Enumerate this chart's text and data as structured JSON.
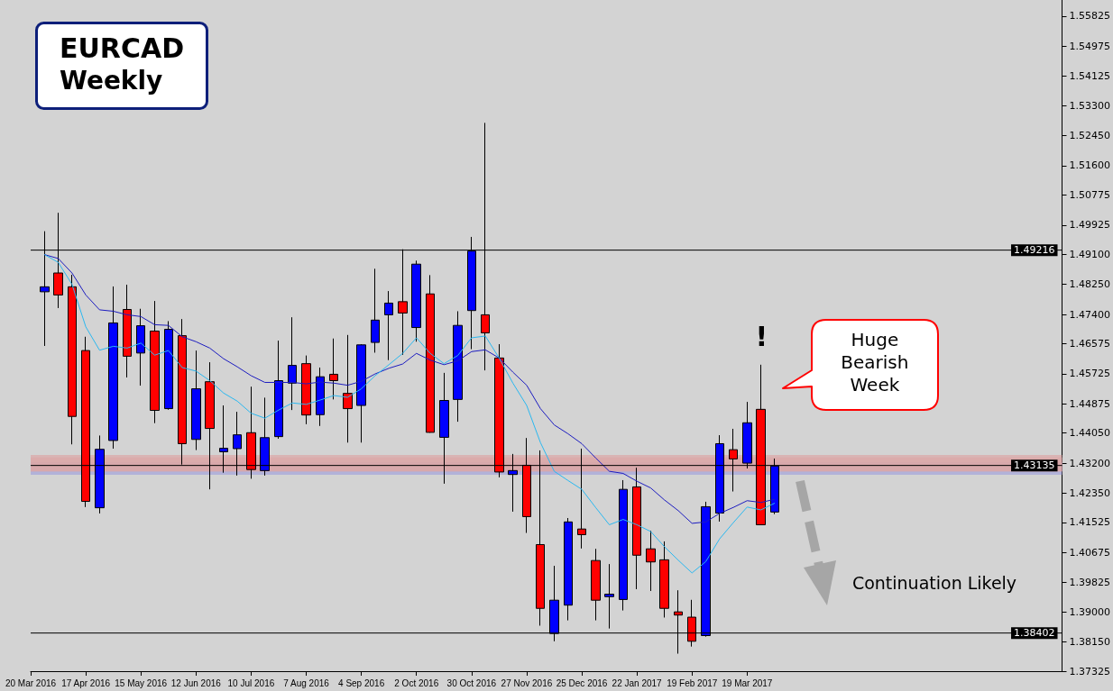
{
  "chart_data": {
    "type": "candlestick",
    "title": "EURCAD",
    "subtitle": "Weekly",
    "x": [
      "2016-03-27",
      "2016-04-03",
      "2016-04-10",
      "2016-04-17",
      "2016-04-24",
      "2016-05-01",
      "2016-05-08",
      "2016-05-15",
      "2016-05-22",
      "2016-05-29",
      "2016-06-05",
      "2016-06-12",
      "2016-06-19",
      "2016-06-26",
      "2016-07-03",
      "2016-07-10",
      "2016-07-17",
      "2016-07-24",
      "2016-07-31",
      "2016-08-07",
      "2016-08-14",
      "2016-08-21",
      "2016-08-28",
      "2016-09-04",
      "2016-09-11",
      "2016-09-18",
      "2016-09-25",
      "2016-10-02",
      "2016-10-09",
      "2016-10-16",
      "2016-10-23",
      "2016-10-30",
      "2016-11-06",
      "2016-11-13",
      "2016-11-20",
      "2016-11-27",
      "2016-12-04",
      "2016-12-11",
      "2016-12-18",
      "2016-12-25",
      "2017-01-01",
      "2017-01-08",
      "2017-01-15",
      "2017-01-22",
      "2017-01-29",
      "2017-02-05",
      "2017-02-12",
      "2017-02-19",
      "2017-02-26",
      "2017-03-05",
      "2017-03-12",
      "2017-03-19",
      "2017-03-26",
      "2017-04-02"
    ],
    "series": [
      {
        "ohlc": [
          [
            1.4804,
            1.4975,
            1.4651,
            1.4818
          ],
          [
            1.4857,
            1.5027,
            1.4758,
            1.4795
          ],
          [
            1.4818,
            1.4852,
            1.4373,
            1.4452
          ],
          [
            1.4638,
            1.4677,
            1.4196,
            1.4212
          ],
          [
            1.4194,
            1.4398,
            1.4178,
            1.4359
          ],
          [
            1.4384,
            1.4819,
            1.4361,
            1.4716
          ],
          [
            1.4754,
            1.4824,
            1.4562,
            1.4622
          ],
          [
            1.4631,
            1.4756,
            1.4539,
            1.4708
          ],
          [
            1.4693,
            1.4778,
            1.4433,
            1.4469
          ],
          [
            1.4474,
            1.4721,
            1.4471,
            1.4698
          ],
          [
            1.468,
            1.4727,
            1.4316,
            1.4375
          ],
          [
            1.4387,
            1.4638,
            1.4357,
            1.453
          ],
          [
            1.455,
            1.4605,
            1.4246,
            1.4418
          ],
          [
            1.4352,
            1.4483,
            1.4293,
            1.4362
          ],
          [
            1.4361,
            1.4465,
            1.4285,
            1.44
          ],
          [
            1.4406,
            1.4536,
            1.4276,
            1.4302
          ],
          [
            1.4299,
            1.4505,
            1.4285,
            1.4392
          ],
          [
            1.4395,
            1.4666,
            1.4389,
            1.4553
          ],
          [
            1.4546,
            1.4732,
            1.447,
            1.4596
          ],
          [
            1.4601,
            1.4624,
            1.443,
            1.4456
          ],
          [
            1.4457,
            1.459,
            1.4425,
            1.4564
          ],
          [
            1.4571,
            1.4672,
            1.45,
            1.4553
          ],
          [
            1.4517,
            1.4682,
            1.4378,
            1.4474
          ],
          [
            1.4483,
            1.4656,
            1.4378,
            1.4654
          ],
          [
            1.4661,
            1.4869,
            1.4632,
            1.4724
          ],
          [
            1.4739,
            1.4806,
            1.4611,
            1.4772
          ],
          [
            1.4776,
            1.4924,
            1.4626,
            1.4744
          ],
          [
            1.4703,
            1.4892,
            1.4663,
            1.4882
          ],
          [
            1.4798,
            1.4851,
            1.4406,
            1.4407
          ],
          [
            1.4393,
            1.4575,
            1.4262,
            1.4497
          ],
          [
            1.45,
            1.4749,
            1.4437,
            1.4709
          ],
          [
            1.4751,
            1.4959,
            1.4642,
            1.4919
          ],
          [
            1.4739,
            1.5281,
            1.4582,
            1.4688
          ],
          [
            1.4617,
            1.4656,
            1.428,
            1.4295
          ],
          [
            1.4288,
            1.4346,
            1.4183,
            1.4299
          ],
          [
            1.4314,
            1.4391,
            1.4123,
            1.4169
          ],
          [
            1.409,
            1.4356,
            1.3861,
            1.391
          ],
          [
            1.3839,
            1.403,
            1.3817,
            1.3933
          ],
          [
            1.3919,
            1.4165,
            1.3876,
            1.4154
          ],
          [
            1.4134,
            1.4361,
            1.4079,
            1.4118
          ],
          [
            1.4045,
            1.4078,
            1.3876,
            1.3933
          ],
          [
            1.3943,
            1.4035,
            1.3853,
            1.395
          ],
          [
            1.3935,
            1.4272,
            1.3904,
            1.4246
          ],
          [
            1.4253,
            1.4307,
            1.3964,
            1.406
          ],
          [
            1.4078,
            1.4129,
            1.3959,
            1.4041
          ],
          [
            1.4047,
            1.4099,
            1.3884,
            1.391
          ],
          [
            1.39,
            1.3961,
            1.3782,
            1.3891
          ],
          [
            1.3885,
            1.3934,
            1.3802,
            1.3817
          ],
          [
            1.3833,
            1.4211,
            1.383,
            1.4197
          ],
          [
            1.4179,
            1.4399,
            1.4155,
            1.4375
          ],
          [
            1.4358,
            1.4417,
            1.424,
            1.4332
          ],
          [
            1.432,
            1.4493,
            1.4305,
            1.4434
          ],
          [
            1.4472,
            1.4598,
            1.4146,
            1.4146
          ],
          [
            1.4182,
            1.4333,
            1.4176,
            1.4312
          ]
        ],
        "colors": [
          "#0000ff",
          "#ff0000",
          "#ff0000",
          "#ff0000",
          "#0000ff",
          "#0000ff",
          "#ff0000",
          "#0000ff",
          "#ff0000",
          "#0000ff",
          "#ff0000",
          "#0000ff",
          "#ff0000",
          "#0000ff",
          "#0000ff",
          "#ff0000",
          "#0000ff",
          "#0000ff",
          "#0000ff",
          "#ff0000",
          "#0000ff",
          "#ff0000",
          "#ff0000",
          "#0000ff",
          "#0000ff",
          "#0000ff",
          "#ff0000",
          "#0000ff",
          "#ff0000",
          "#0000ff",
          "#0000ff",
          "#0000ff",
          "#ff0000",
          "#ff0000",
          "#0000ff",
          "#ff0000",
          "#ff0000",
          "#0000ff",
          "#0000ff",
          "#ff0000",
          "#ff0000",
          "#0000ff",
          "#0000ff",
          "#ff0000",
          "#ff0000",
          "#ff0000",
          "#ff0000",
          "#ff0000",
          "#0000ff",
          "#0000ff",
          "#ff0000",
          "#0000ff",
          "#ff0000",
          "#0000ff"
        ]
      },
      {
        "type": "line",
        "color": "#1c1cc0",
        "values": [
          1.4909,
          1.4898,
          1.4857,
          1.4795,
          1.4753,
          1.4749,
          1.4739,
          1.4734,
          1.4711,
          1.4709,
          1.4677,
          1.4663,
          1.4645,
          1.4615,
          1.4592,
          1.4567,
          1.4548,
          1.4548,
          1.4548,
          1.4544,
          1.4549,
          1.4546,
          1.454,
          1.4551,
          1.4572,
          1.4588,
          1.46,
          1.463,
          1.4611,
          1.4598,
          1.4609,
          1.4635,
          1.464,
          1.4617,
          1.4577,
          1.454,
          1.4474,
          1.4428,
          1.4403,
          1.4375,
          1.4335,
          1.4297,
          1.4291,
          1.4269,
          1.425,
          1.4216,
          1.4186,
          1.415,
          1.4154,
          1.4178,
          1.4195,
          1.4214,
          1.4209,
          1.4218
        ]
      },
      {
        "type": "line",
        "color": "#2ab8f0",
        "values": [
          1.4909,
          1.4887,
          1.4825,
          1.4705,
          1.4639,
          1.465,
          1.4645,
          1.4659,
          1.4625,
          1.4638,
          1.459,
          1.458,
          1.4553,
          1.4518,
          1.4495,
          1.4461,
          1.4447,
          1.447,
          1.449,
          1.4486,
          1.4498,
          1.4511,
          1.4506,
          1.453,
          1.4567,
          1.4598,
          1.463,
          1.4674,
          1.463,
          1.4601,
          1.4624,
          1.4674,
          1.4679,
          1.4617,
          1.4546,
          1.4483,
          1.4378,
          1.4297,
          1.4271,
          1.4246,
          1.4195,
          1.4146,
          1.4161,
          1.4146,
          1.4127,
          1.4084,
          1.4046,
          1.401,
          1.4042,
          1.4106,
          1.4152,
          1.4196,
          1.4188,
          1.4207
        ]
      }
    ],
    "xlim": [
      "2016-03-20",
      "2017-08-26"
    ],
    "xticks": [
      {
        "value": "2016-03-20",
        "label": "20 Mar 2016"
      },
      {
        "value": "2016-04-17",
        "label": "17 Apr 2016"
      },
      {
        "value": "2016-05-15",
        "label": "15 May 2016"
      },
      {
        "value": "2016-06-12",
        "label": "12 Jun 2016"
      },
      {
        "value": "2016-07-10",
        "label": "10 Jul 2016"
      },
      {
        "value": "2016-08-07",
        "label": "7 Aug 2016"
      },
      {
        "value": "2016-09-04",
        "label": "4 Sep 2016"
      },
      {
        "value": "2016-10-02",
        "label": "2 Oct 2016"
      },
      {
        "value": "2016-10-30",
        "label": "30 Oct 2016"
      },
      {
        "value": "2016-11-27",
        "label": "27 Nov 2016"
      },
      {
        "value": "2016-12-25",
        "label": "25 Dec 2016"
      },
      {
        "value": "2017-01-22",
        "label": "22 Jan 2017"
      },
      {
        "value": "2017-02-19",
        "label": "19 Feb 2017"
      },
      {
        "value": "2017-03-19",
        "label": "19 Mar 2017"
      }
    ],
    "ylim": [
      1.37325,
      1.5628
    ],
    "yticks": [
      1.37325,
      {
        "value": 1.3815,
        "label": "1.38150"
      },
      {
        "value": 1.39,
        "label": "1.39000"
      },
      1.39825,
      1.40675,
      1.41525,
      {
        "value": 1.4235,
        "label": "1.42350"
      },
      {
        "value": 1.432,
        "label": "1.43200"
      },
      {
        "value": 1.4405,
        "label": "1.44050"
      },
      1.44875,
      1.45725,
      1.46575,
      {
        "value": 1.474,
        "label": "1.47400"
      },
      {
        "value": 1.4825,
        "label": "1.48250"
      },
      {
        "value": 1.491,
        "label": "1.49100"
      },
      1.49925,
      1.50775,
      {
        "value": 1.516,
        "label": "1.51600"
      },
      {
        "value": 1.5245,
        "label": "1.52450"
      },
      {
        "value": 1.533,
        "label": "1.53300"
      },
      1.54125,
      1.54975,
      1.55825
    ],
    "grid": false,
    "marker": "none",
    "ref_lines": [
      {
        "axis": "y",
        "value": 1.49216,
        "label": "1.49216",
        "color": "#000000"
      },
      {
        "axis": "y",
        "value": 1.43135,
        "label": "1.43135",
        "color": "#000000"
      },
      {
        "axis": "y",
        "value": 1.38402,
        "label": "1.38402",
        "color": "#000000"
      }
    ],
    "bands": [
      {
        "axis": "y",
        "from": 1.4287,
        "to": 1.4323,
        "color": "#a4a4dc"
      },
      {
        "axis": "y",
        "from": 1.4297,
        "to": 1.4343,
        "color": "#dba7a7"
      },
      {
        "axis": "y",
        "from": 1.4297,
        "to": 1.4336,
        "color": "#dba7a7"
      }
    ],
    "annotations": [
      "!",
      "Huge Bearish Week",
      "Continuation Likely"
    ]
  }
}
